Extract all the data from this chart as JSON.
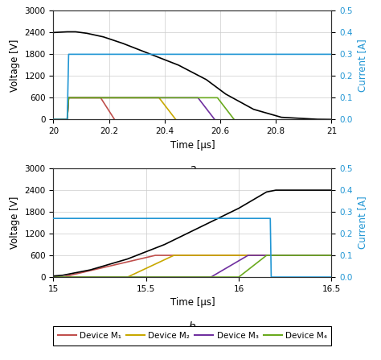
{
  "plot_a": {
    "xlim": [
      20.0,
      21.0
    ],
    "ylim_v": [
      0,
      3000
    ],
    "ylim_i": [
      0,
      0.5
    ],
    "yticks_v": [
      0,
      600,
      1200,
      1800,
      2400,
      3000
    ],
    "yticks_i": [
      0,
      0.1,
      0.2,
      0.3,
      0.4,
      0.5
    ],
    "xticks": [
      20.0,
      20.2,
      20.4,
      20.6,
      20.8,
      21.0
    ],
    "xticklabels": [
      "20",
      "20.2",
      "20.4",
      "20.6",
      "20.8",
      "21"
    ],
    "xlabel": "Time [μs]",
    "ylabel_v": "Voltage [V]",
    "ylabel_i": "Current [A]",
    "label": "a",
    "black_v": {
      "x": [
        20.0,
        20.05,
        20.08,
        20.12,
        20.18,
        20.25,
        20.35,
        20.45,
        20.55,
        20.62,
        20.72,
        20.82,
        20.95,
        21.0
      ],
      "y": [
        2400,
        2420,
        2420,
        2380,
        2280,
        2100,
        1800,
        1500,
        1100,
        700,
        280,
        60,
        5,
        0
      ]
    },
    "blue_i": {
      "x": [
        20.0,
        20.05,
        20.055,
        21.0
      ],
      "y": [
        0.0,
        0.0,
        0.3,
        0.3
      ]
    },
    "m1_v": {
      "x": [
        20.0,
        20.05,
        20.055,
        20.17,
        20.22
      ],
      "y": [
        0,
        0,
        600,
        600,
        0
      ]
    },
    "m2_v": {
      "x": [
        20.0,
        20.05,
        20.055,
        20.38,
        20.44
      ],
      "y": [
        0,
        0,
        600,
        600,
        0
      ]
    },
    "m3_v": {
      "x": [
        20.0,
        20.05,
        20.055,
        20.52,
        20.58
      ],
      "y": [
        0,
        0,
        600,
        600,
        0
      ]
    },
    "m4_v": {
      "x": [
        20.0,
        20.05,
        20.055,
        20.59,
        20.65
      ],
      "y": [
        0,
        0,
        600,
        600,
        0
      ]
    }
  },
  "plot_b": {
    "xlim": [
      15.0,
      16.5
    ],
    "ylim_v": [
      0,
      3000
    ],
    "ylim_i": [
      0,
      0.5
    ],
    "yticks_v": [
      0,
      600,
      1200,
      1800,
      2400,
      3000
    ],
    "yticks_i": [
      0,
      0.1,
      0.2,
      0.3,
      0.4,
      0.5
    ],
    "xticks": [
      15.0,
      15.5,
      16.0,
      16.5
    ],
    "xticklabels": [
      "15",
      "15.5",
      "16",
      "16.5"
    ],
    "xlabel": "Time [μs]",
    "ylabel_v": "Voltage [V]",
    "ylabel_i": "Current [A]",
    "label": "b",
    "black_v": {
      "x": [
        15.0,
        15.05,
        15.2,
        15.4,
        15.6,
        15.8,
        16.0,
        16.15,
        16.2,
        16.5
      ],
      "y": [
        30,
        50,
        200,
        500,
        900,
        1400,
        1900,
        2350,
        2400,
        2400
      ]
    },
    "blue_i": {
      "x": [
        15.0,
        16.17,
        16.175,
        16.5
      ],
      "y": [
        0.27,
        0.27,
        0.0,
        0.0
      ]
    },
    "m1_v": {
      "x": [
        15.0,
        15.05,
        15.3,
        15.55,
        16.5
      ],
      "y": [
        0,
        0,
        300,
        600,
        600
      ]
    },
    "m2_v": {
      "x": [
        15.0,
        15.4,
        15.65,
        16.5
      ],
      "y": [
        0,
        0,
        600,
        600
      ]
    },
    "m3_v": {
      "x": [
        15.0,
        15.85,
        16.05,
        16.5
      ],
      "y": [
        0,
        0,
        600,
        600
      ]
    },
    "m4_v": {
      "x": [
        15.0,
        16.0,
        16.15,
        16.5
      ],
      "y": [
        0,
        0,
        600,
        600
      ]
    }
  },
  "colors": {
    "black": "#000000",
    "blue": "#2196d4",
    "m1": "#c0504d",
    "m2": "#c8a800",
    "m3": "#7030a0",
    "m4": "#6aaa1e"
  },
  "legend": {
    "labels": [
      "Device M₁",
      "Device M₂",
      "Device M₃",
      "Device M₄"
    ],
    "colors": [
      "#c0504d",
      "#c8a800",
      "#7030a0",
      "#6aaa1e"
    ]
  }
}
